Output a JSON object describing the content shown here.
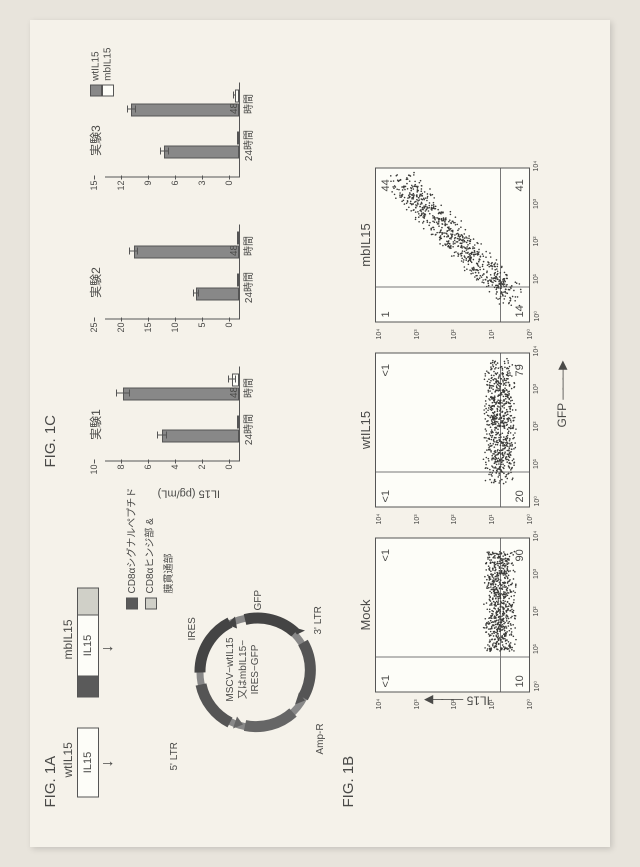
{
  "labels": {
    "fig1a": "FIG. 1A",
    "fig1b": "FIG. 1B",
    "fig1c": "FIG. 1C"
  },
  "fig1a": {
    "wt_title": "wtIL15",
    "mb_title": "mbIL15",
    "il15_text": "IL15",
    "legend1": "CD8αシグナルペプチド",
    "legend2_line1": "CD8αヒンジ部 &",
    "legend2_line2": "膜貫通部",
    "legend1_color": "#5a5a5a",
    "legend2_color": "#d0d0c8",
    "plasmid_center_l1": "MSCV−wtIL15",
    "plasmid_center_l2": "又はmbIL15−",
    "plasmid_center_l3": "IRES−GFP",
    "pl_5ltr": "5' LTR",
    "pl_3ltr": "3' LTR",
    "pl_ires": "IRES",
    "pl_gfp": "GFP",
    "pl_ampr": "Amp-R"
  },
  "fig1c": {
    "ylabel": "IL15 (pg/mL)",
    "x24": "24時間",
    "x48": "48時間",
    "legend_wt": "wtIL15",
    "legend_mb": "mbIL15",
    "charts": [
      {
        "title": "実験1",
        "ymax": 10,
        "ytick_step": 2,
        "bars": [
          {
            "x": "24",
            "wt": 5.7,
            "wt_err": 0.4,
            "mb": 0.1,
            "mb_err": 0
          },
          {
            "x": "48",
            "wt": 8.6,
            "wt_err": 0.5,
            "mb": 0.5,
            "mb_err": 0.3
          }
        ]
      },
      {
        "title": "実験2",
        "ymax": 25,
        "ytick_step": 5,
        "bars": [
          {
            "x": "24",
            "wt": 8.0,
            "wt_err": 0.5,
            "mb": 0.2,
            "mb_err": 0
          },
          {
            "x": "48",
            "wt": 19.5,
            "wt_err": 0.8,
            "mb": 0.4,
            "mb_err": 0
          }
        ]
      },
      {
        "title": "実験3",
        "ymax": 15,
        "ytick_step": 3,
        "bars": [
          {
            "x": "24",
            "wt": 8.3,
            "wt_err": 0.5,
            "mb": 0.2,
            "mb_err": 0
          },
          {
            "x": "48",
            "wt": 12.0,
            "wt_err": 0.5,
            "mb": 0.5,
            "mb_err": 0.2
          }
        ]
      }
    ],
    "bar_wt_color": "#888888",
    "bar_mb_color": "#fdfdf8"
  },
  "fig1b": {
    "y_axis": "IL15",
    "x_axis": "GFP",
    "panels": [
      {
        "title": "Mock",
        "q_ul": "<1",
        "q_ur": "<1",
        "q_ll": "10",
        "q_lr": "90",
        "vline": 0.22,
        "hline": 0.2,
        "cloud": "low"
      },
      {
        "title": "wtIL15",
        "q_ul": "<1",
        "q_ur": "<1",
        "q_ll": "20",
        "q_lr": "79",
        "vline": 0.22,
        "hline": 0.2,
        "cloud": "low"
      },
      {
        "title": "mbIL15",
        "q_ul": "1",
        "q_ur": "44",
        "q_ll": "14",
        "q_lr": "41",
        "vline": 0.22,
        "hline": 0.2,
        "cloud": "diag"
      }
    ],
    "log_ticks": [
      "10⁰",
      "10¹",
      "10²",
      "10³",
      "10⁴"
    ]
  }
}
